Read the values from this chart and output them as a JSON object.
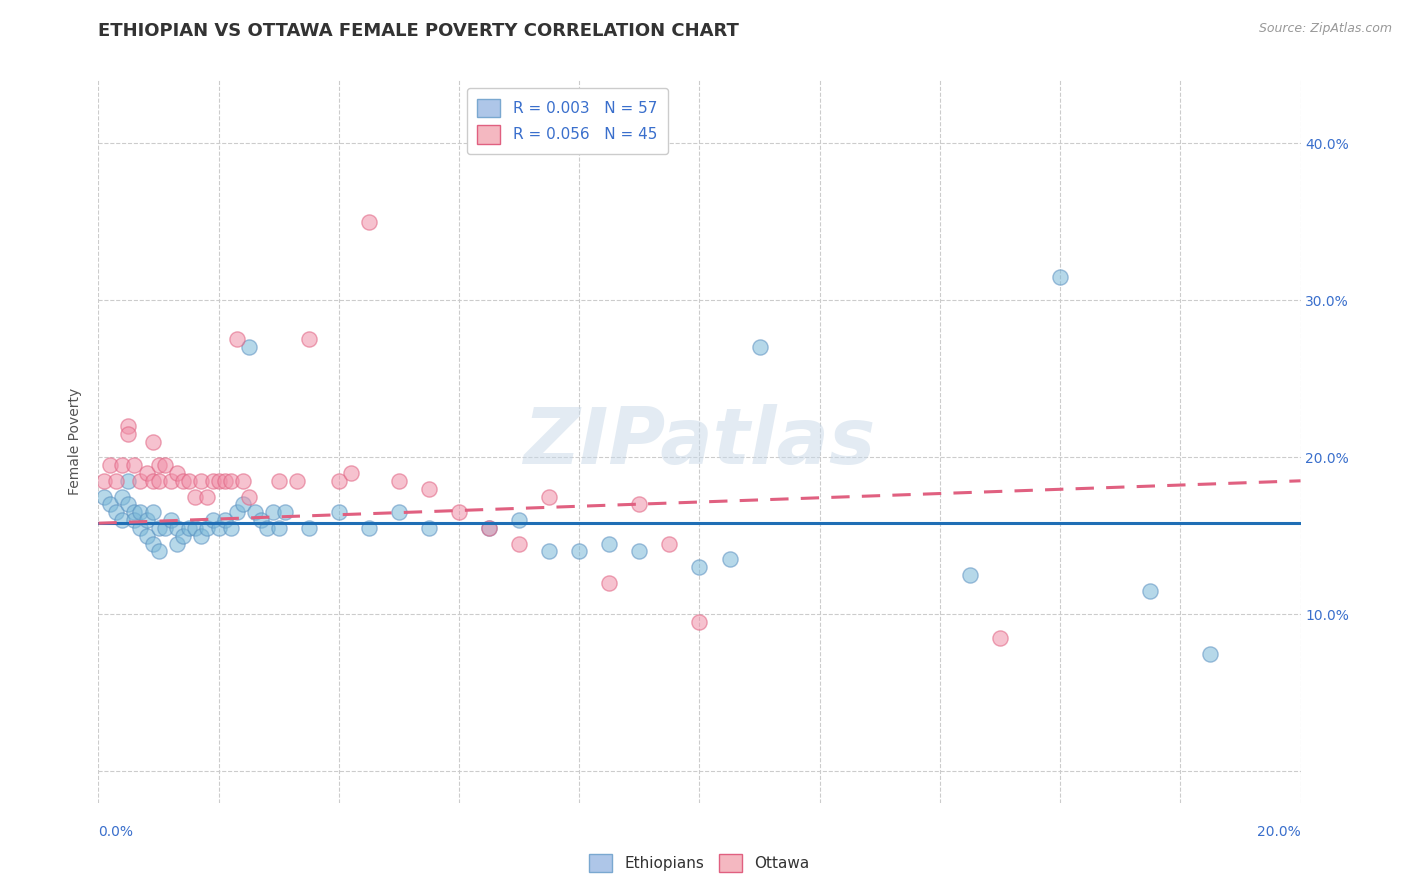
{
  "title": "ETHIOPIAN VS OTTAWA FEMALE POVERTY CORRELATION CHART",
  "source": "Source: ZipAtlas.com",
  "ylabel": "Female Poverty",
  "yticks": [
    0.0,
    0.1,
    0.2,
    0.3,
    0.4
  ],
  "xlim": [
    0.0,
    0.2
  ],
  "ylim": [
    -0.02,
    0.44
  ],
  "legend_entries": [
    {
      "label": "R = 0.003   N = 57",
      "color": "#aec6e8"
    },
    {
      "label": "R = 0.056   N = 45",
      "color": "#f4b8c1"
    }
  ],
  "bottom_legend": [
    {
      "label": "Ethiopians",
      "color": "#aec6e8"
    },
    {
      "label": "Ottawa",
      "color": "#f4b8c1"
    }
  ],
  "watermark": "ZIPatlas",
  "ethiopian_scatter": [
    [
      0.001,
      0.175
    ],
    [
      0.002,
      0.17
    ],
    [
      0.003,
      0.165
    ],
    [
      0.004,
      0.16
    ],
    [
      0.004,
      0.175
    ],
    [
      0.005,
      0.185
    ],
    [
      0.005,
      0.17
    ],
    [
      0.006,
      0.165
    ],
    [
      0.006,
      0.16
    ],
    [
      0.007,
      0.155
    ],
    [
      0.007,
      0.165
    ],
    [
      0.008,
      0.15
    ],
    [
      0.008,
      0.16
    ],
    [
      0.009,
      0.145
    ],
    [
      0.009,
      0.165
    ],
    [
      0.01,
      0.155
    ],
    [
      0.01,
      0.14
    ],
    [
      0.011,
      0.155
    ],
    [
      0.012,
      0.16
    ],
    [
      0.013,
      0.145
    ],
    [
      0.013,
      0.155
    ],
    [
      0.014,
      0.15
    ],
    [
      0.015,
      0.155
    ],
    [
      0.016,
      0.155
    ],
    [
      0.017,
      0.15
    ],
    [
      0.018,
      0.155
    ],
    [
      0.019,
      0.16
    ],
    [
      0.02,
      0.155
    ],
    [
      0.021,
      0.16
    ],
    [
      0.022,
      0.155
    ],
    [
      0.023,
      0.165
    ],
    [
      0.024,
      0.17
    ],
    [
      0.025,
      0.27
    ],
    [
      0.026,
      0.165
    ],
    [
      0.027,
      0.16
    ],
    [
      0.028,
      0.155
    ],
    [
      0.029,
      0.165
    ],
    [
      0.03,
      0.155
    ],
    [
      0.031,
      0.165
    ],
    [
      0.035,
      0.155
    ],
    [
      0.04,
      0.165
    ],
    [
      0.045,
      0.155
    ],
    [
      0.05,
      0.165
    ],
    [
      0.055,
      0.155
    ],
    [
      0.065,
      0.155
    ],
    [
      0.07,
      0.16
    ],
    [
      0.075,
      0.14
    ],
    [
      0.08,
      0.14
    ],
    [
      0.085,
      0.145
    ],
    [
      0.09,
      0.14
    ],
    [
      0.1,
      0.13
    ],
    [
      0.105,
      0.135
    ],
    [
      0.11,
      0.27
    ],
    [
      0.145,
      0.125
    ],
    [
      0.16,
      0.315
    ],
    [
      0.175,
      0.115
    ],
    [
      0.185,
      0.075
    ]
  ],
  "ottawa_scatter": [
    [
      0.001,
      0.185
    ],
    [
      0.002,
      0.195
    ],
    [
      0.003,
      0.185
    ],
    [
      0.004,
      0.195
    ],
    [
      0.005,
      0.22
    ],
    [
      0.005,
      0.215
    ],
    [
      0.006,
      0.195
    ],
    [
      0.007,
      0.185
    ],
    [
      0.008,
      0.19
    ],
    [
      0.009,
      0.185
    ],
    [
      0.009,
      0.21
    ],
    [
      0.01,
      0.185
    ],
    [
      0.01,
      0.195
    ],
    [
      0.011,
      0.195
    ],
    [
      0.012,
      0.185
    ],
    [
      0.013,
      0.19
    ],
    [
      0.014,
      0.185
    ],
    [
      0.015,
      0.185
    ],
    [
      0.016,
      0.175
    ],
    [
      0.017,
      0.185
    ],
    [
      0.018,
      0.175
    ],
    [
      0.019,
      0.185
    ],
    [
      0.02,
      0.185
    ],
    [
      0.021,
      0.185
    ],
    [
      0.022,
      0.185
    ],
    [
      0.023,
      0.275
    ],
    [
      0.024,
      0.185
    ],
    [
      0.025,
      0.175
    ],
    [
      0.03,
      0.185
    ],
    [
      0.033,
      0.185
    ],
    [
      0.035,
      0.275
    ],
    [
      0.04,
      0.185
    ],
    [
      0.042,
      0.19
    ],
    [
      0.045,
      0.35
    ],
    [
      0.05,
      0.185
    ],
    [
      0.055,
      0.18
    ],
    [
      0.06,
      0.165
    ],
    [
      0.065,
      0.155
    ],
    [
      0.07,
      0.145
    ],
    [
      0.075,
      0.175
    ],
    [
      0.085,
      0.12
    ],
    [
      0.09,
      0.17
    ],
    [
      0.095,
      0.145
    ],
    [
      0.1,
      0.095
    ],
    [
      0.15,
      0.085
    ]
  ],
  "ethiopian_trend": {
    "x": [
      0.0,
      0.2
    ],
    "y": [
      0.158,
      0.158
    ],
    "color": "#1f6eb5",
    "style": "-"
  },
  "ottawa_trend": {
    "x": [
      0.0,
      0.2
    ],
    "y": [
      0.158,
      0.185
    ],
    "color": "#e06080",
    "style": "--"
  },
  "scatter_blue": "#7ab8d8",
  "scatter_pink": "#f090a8",
  "scatter_edge_blue": "#5a90c0",
  "scatter_edge_pink": "#e06080",
  "scatter_size": 120,
  "scatter_alpha": 0.55,
  "grid_color": "#cccccc",
  "grid_style": "--",
  "background_color": "#ffffff",
  "title_fontsize": 13,
  "axis_label_fontsize": 10,
  "tick_fontsize": 10,
  "legend_fontsize": 11
}
